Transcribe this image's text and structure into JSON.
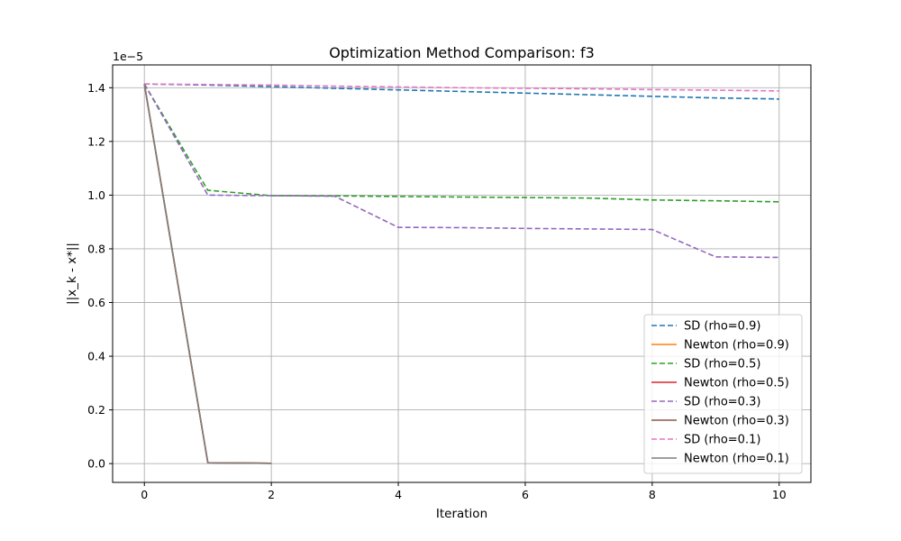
{
  "chart_data": {
    "type": "line",
    "title": "Optimization Method Comparison: f3",
    "xlabel": "Iteration",
    "ylabel": "||x_k - x*||",
    "y_offset_text": "1e−5",
    "xlim": [
      -0.5,
      10.5
    ],
    "ylim": [
      -0.07,
      1.485
    ],
    "xticks": [
      0,
      2,
      4,
      6,
      8,
      10
    ],
    "xtick_labels": [
      "0",
      "2",
      "4",
      "6",
      "8",
      "10"
    ],
    "yticks": [
      0.0,
      0.2,
      0.4,
      0.6,
      0.8,
      1.0,
      1.2,
      1.4
    ],
    "ytick_labels": [
      "0.0",
      "0.2",
      "0.4",
      "0.6",
      "0.8",
      "1.0",
      "1.2",
      "1.4"
    ],
    "grid": true,
    "legend_position": "lower-right",
    "series": [
      {
        "name": "SD (rho=0.9)",
        "color": "#1f77b4",
        "dash": true,
        "x": [
          0,
          1,
          2,
          3,
          4,
          5,
          6,
          7,
          8,
          9,
          10
        ],
        "y": [
          1.414,
          1.41,
          1.404,
          1.398,
          1.392,
          1.386,
          1.38,
          1.374,
          1.368,
          1.362,
          1.358
        ]
      },
      {
        "name": "Newton (rho=0.9)",
        "color": "#ff7f0e",
        "dash": false,
        "x": [
          0,
          1,
          2
        ],
        "y": [
          1.414,
          0.003,
          0.001
        ]
      },
      {
        "name": "SD (rho=0.5)",
        "color": "#2ca02c",
        "dash": true,
        "x": [
          0,
          1,
          2,
          3,
          4,
          5,
          6,
          7,
          8,
          9,
          10
        ],
        "y": [
          1.414,
          1.018,
          0.998,
          0.997,
          0.995,
          0.993,
          0.991,
          0.989,
          0.982,
          0.979,
          0.975
        ]
      },
      {
        "name": "Newton (rho=0.5)",
        "color": "#d62728",
        "dash": false,
        "x": [
          0,
          1,
          2
        ],
        "y": [
          1.414,
          0.003,
          0.001
        ]
      },
      {
        "name": "SD (rho=0.3)",
        "color": "#9467bd",
        "dash": true,
        "x": [
          0,
          1,
          2,
          3,
          4,
          5,
          6,
          7,
          8,
          9,
          10
        ],
        "y": [
          1.414,
          1.0,
          0.998,
          0.996,
          0.88,
          0.879,
          0.876,
          0.874,
          0.872,
          0.77,
          0.768
        ]
      },
      {
        "name": "Newton (rho=0.3)",
        "color": "#8c564b",
        "dash": false,
        "x": [
          0,
          1,
          2
        ],
        "y": [
          1.414,
          0.003,
          0.001
        ]
      },
      {
        "name": "SD (rho=0.1)",
        "color": "#e377c2",
        "dash": true,
        "x": [
          0,
          1,
          2,
          3,
          4,
          5,
          6,
          7,
          8,
          9,
          10
        ],
        "y": [
          1.414,
          1.412,
          1.41,
          1.406,
          1.403,
          1.4,
          1.398,
          1.396,
          1.393,
          1.391,
          1.388
        ]
      },
      {
        "name": "Newton (rho=0.1)",
        "color": "#7f7f7f",
        "dash": false,
        "x": [
          0,
          1,
          2
        ],
        "y": [
          1.414,
          0.003,
          0.001
        ]
      }
    ]
  }
}
